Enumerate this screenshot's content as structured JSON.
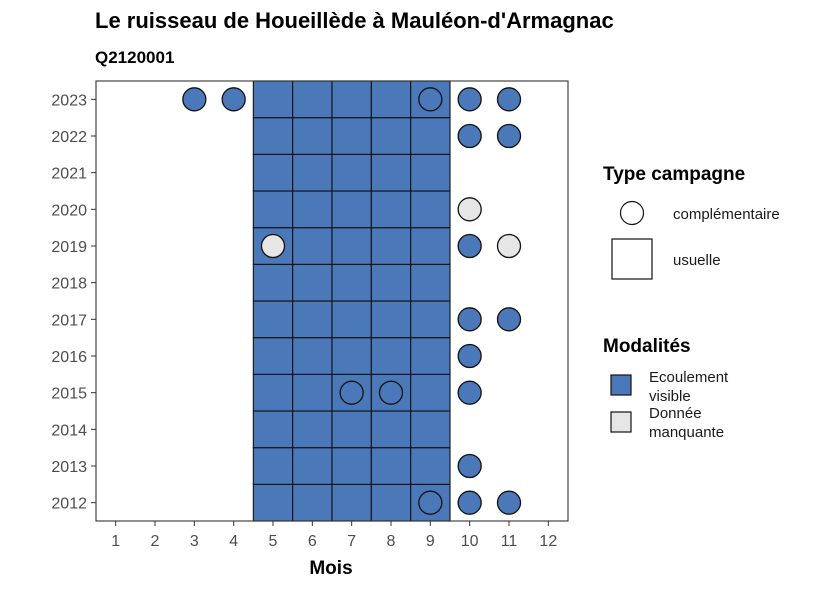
{
  "chart_data": {
    "type": "heatmap",
    "title": "Le ruisseau de Houeillède à Mauléon-d'Armagnac",
    "subtitle": "Q2120001",
    "xlabel": "Mois",
    "ylabel": "",
    "x_ticks": [
      "1",
      "2",
      "3",
      "4",
      "5",
      "6",
      "7",
      "8",
      "9",
      "10",
      "11",
      "12"
    ],
    "y_ticks": [
      "2012",
      "2013",
      "2014",
      "2015",
      "2016",
      "2017",
      "2018",
      "2019",
      "2020",
      "2021",
      "2022",
      "2023"
    ],
    "xlim": [
      0.5,
      12.5
    ],
    "ylim": [
      2011.5,
      2023.5
    ],
    "grid": false,
    "colors": {
      "Ecoulement visible": "#4a78b8",
      "Donnée manquante": "#e6e6e6",
      "frame": "#333333",
      "outline": "#111111"
    },
    "legend": {
      "placement": "right",
      "type_title": "Type campagne",
      "type_items": [
        {
          "label": "complémentaire",
          "shape": "circle"
        },
        {
          "label": "usuelle",
          "shape": "square"
        }
      ],
      "modalite_title": "Modalités",
      "modalite_items": [
        {
          "label_lines": [
            "Ecoulement",
            "visible"
          ],
          "value": "Ecoulement visible"
        },
        {
          "label_lines": [
            "Donnée",
            "manquante"
          ],
          "value": "Donnée manquante"
        }
      ]
    },
    "points": [
      {
        "x": 5,
        "y": 2012,
        "type": "usuelle",
        "value": "Ecoulement visible"
      },
      {
        "x": 6,
        "y": 2012,
        "type": "usuelle",
        "value": "Ecoulement visible"
      },
      {
        "x": 7,
        "y": 2012,
        "type": "usuelle",
        "value": "Ecoulement visible"
      },
      {
        "x": 8,
        "y": 2012,
        "type": "usuelle",
        "value": "Ecoulement visible"
      },
      {
        "x": 9,
        "y": 2012,
        "type": "usuelle",
        "value": "Ecoulement visible"
      },
      {
        "x": 9,
        "y": 2012,
        "type": "complémentaire",
        "value": "Ecoulement visible"
      },
      {
        "x": 10,
        "y": 2012,
        "type": "complémentaire",
        "value": "Ecoulement visible"
      },
      {
        "x": 11,
        "y": 2012,
        "type": "complémentaire",
        "value": "Ecoulement visible"
      },
      {
        "x": 5,
        "y": 2013,
        "type": "usuelle",
        "value": "Ecoulement visible"
      },
      {
        "x": 6,
        "y": 2013,
        "type": "usuelle",
        "value": "Ecoulement visible"
      },
      {
        "x": 7,
        "y": 2013,
        "type": "usuelle",
        "value": "Ecoulement visible"
      },
      {
        "x": 8,
        "y": 2013,
        "type": "usuelle",
        "value": "Ecoulement visible"
      },
      {
        "x": 9,
        "y": 2013,
        "type": "usuelle",
        "value": "Ecoulement visible"
      },
      {
        "x": 10,
        "y": 2013,
        "type": "complémentaire",
        "value": "Ecoulement visible"
      },
      {
        "x": 5,
        "y": 2014,
        "type": "usuelle",
        "value": "Ecoulement visible"
      },
      {
        "x": 6,
        "y": 2014,
        "type": "usuelle",
        "value": "Ecoulement visible"
      },
      {
        "x": 7,
        "y": 2014,
        "type": "usuelle",
        "value": "Ecoulement visible"
      },
      {
        "x": 8,
        "y": 2014,
        "type": "usuelle",
        "value": "Ecoulement visible"
      },
      {
        "x": 9,
        "y": 2014,
        "type": "usuelle",
        "value": "Ecoulement visible"
      },
      {
        "x": 5,
        "y": 2015,
        "type": "usuelle",
        "value": "Ecoulement visible"
      },
      {
        "x": 6,
        "y": 2015,
        "type": "usuelle",
        "value": "Ecoulement visible"
      },
      {
        "x": 7,
        "y": 2015,
        "type": "usuelle",
        "value": "Ecoulement visible"
      },
      {
        "x": 8,
        "y": 2015,
        "type": "usuelle",
        "value": "Ecoulement visible"
      },
      {
        "x": 9,
        "y": 2015,
        "type": "usuelle",
        "value": "Ecoulement visible"
      },
      {
        "x": 7,
        "y": 2015,
        "type": "complémentaire",
        "value": "Ecoulement visible"
      },
      {
        "x": 8,
        "y": 2015,
        "type": "complémentaire",
        "value": "Ecoulement visible"
      },
      {
        "x": 10,
        "y": 2015,
        "type": "complémentaire",
        "value": "Ecoulement visible"
      },
      {
        "x": 5,
        "y": 2016,
        "type": "usuelle",
        "value": "Ecoulement visible"
      },
      {
        "x": 6,
        "y": 2016,
        "type": "usuelle",
        "value": "Ecoulement visible"
      },
      {
        "x": 7,
        "y": 2016,
        "type": "usuelle",
        "value": "Ecoulement visible"
      },
      {
        "x": 8,
        "y": 2016,
        "type": "usuelle",
        "value": "Ecoulement visible"
      },
      {
        "x": 9,
        "y": 2016,
        "type": "usuelle",
        "value": "Ecoulement visible"
      },
      {
        "x": 10,
        "y": 2016,
        "type": "complémentaire",
        "value": "Ecoulement visible"
      },
      {
        "x": 5,
        "y": 2017,
        "type": "usuelle",
        "value": "Ecoulement visible"
      },
      {
        "x": 6,
        "y": 2017,
        "type": "usuelle",
        "value": "Ecoulement visible"
      },
      {
        "x": 7,
        "y": 2017,
        "type": "usuelle",
        "value": "Ecoulement visible"
      },
      {
        "x": 8,
        "y": 2017,
        "type": "usuelle",
        "value": "Ecoulement visible"
      },
      {
        "x": 9,
        "y": 2017,
        "type": "usuelle",
        "value": "Ecoulement visible"
      },
      {
        "x": 10,
        "y": 2017,
        "type": "complémentaire",
        "value": "Ecoulement visible"
      },
      {
        "x": 11,
        "y": 2017,
        "type": "complémentaire",
        "value": "Ecoulement visible"
      },
      {
        "x": 5,
        "y": 2018,
        "type": "usuelle",
        "value": "Ecoulement visible"
      },
      {
        "x": 6,
        "y": 2018,
        "type": "usuelle",
        "value": "Ecoulement visible"
      },
      {
        "x": 7,
        "y": 2018,
        "type": "usuelle",
        "value": "Ecoulement visible"
      },
      {
        "x": 8,
        "y": 2018,
        "type": "usuelle",
        "value": "Ecoulement visible"
      },
      {
        "x": 9,
        "y": 2018,
        "type": "usuelle",
        "value": "Ecoulement visible"
      },
      {
        "x": 5,
        "y": 2019,
        "type": "usuelle",
        "value": "Ecoulement visible"
      },
      {
        "x": 6,
        "y": 2019,
        "type": "usuelle",
        "value": "Ecoulement visible"
      },
      {
        "x": 7,
        "y": 2019,
        "type": "usuelle",
        "value": "Ecoulement visible"
      },
      {
        "x": 8,
        "y": 2019,
        "type": "usuelle",
        "value": "Ecoulement visible"
      },
      {
        "x": 9,
        "y": 2019,
        "type": "usuelle",
        "value": "Ecoulement visible"
      },
      {
        "x": 5,
        "y": 2019,
        "type": "complémentaire",
        "value": "Donnée manquante"
      },
      {
        "x": 10,
        "y": 2019,
        "type": "complémentaire",
        "value": "Ecoulement visible"
      },
      {
        "x": 11,
        "y": 2019,
        "type": "complémentaire",
        "value": "Donnée manquante"
      },
      {
        "x": 5,
        "y": 2020,
        "type": "usuelle",
        "value": "Ecoulement visible"
      },
      {
        "x": 6,
        "y": 2020,
        "type": "usuelle",
        "value": "Ecoulement visible"
      },
      {
        "x": 7,
        "y": 2020,
        "type": "usuelle",
        "value": "Ecoulement visible"
      },
      {
        "x": 8,
        "y": 2020,
        "type": "usuelle",
        "value": "Ecoulement visible"
      },
      {
        "x": 9,
        "y": 2020,
        "type": "usuelle",
        "value": "Ecoulement visible"
      },
      {
        "x": 10,
        "y": 2020,
        "type": "complémentaire",
        "value": "Donnée manquante"
      },
      {
        "x": 5,
        "y": 2021,
        "type": "usuelle",
        "value": "Ecoulement visible"
      },
      {
        "x": 6,
        "y": 2021,
        "type": "usuelle",
        "value": "Ecoulement visible"
      },
      {
        "x": 7,
        "y": 2021,
        "type": "usuelle",
        "value": "Ecoulement visible"
      },
      {
        "x": 8,
        "y": 2021,
        "type": "usuelle",
        "value": "Ecoulement visible"
      },
      {
        "x": 9,
        "y": 2021,
        "type": "usuelle",
        "value": "Ecoulement visible"
      },
      {
        "x": 5,
        "y": 2022,
        "type": "usuelle",
        "value": "Ecoulement visible"
      },
      {
        "x": 6,
        "y": 2022,
        "type": "usuelle",
        "value": "Ecoulement visible"
      },
      {
        "x": 7,
        "y": 2022,
        "type": "usuelle",
        "value": "Ecoulement visible"
      },
      {
        "x": 8,
        "y": 2022,
        "type": "usuelle",
        "value": "Ecoulement visible"
      },
      {
        "x": 9,
        "y": 2022,
        "type": "usuelle",
        "value": "Ecoulement visible"
      },
      {
        "x": 10,
        "y": 2022,
        "type": "complémentaire",
        "value": "Ecoulement visible"
      },
      {
        "x": 11,
        "y": 2022,
        "type": "complémentaire",
        "value": "Ecoulement visible"
      },
      {
        "x": 5,
        "y": 2023,
        "type": "usuelle",
        "value": "Ecoulement visible"
      },
      {
        "x": 6,
        "y": 2023,
        "type": "usuelle",
        "value": "Ecoulement visible"
      },
      {
        "x": 7,
        "y": 2023,
        "type": "usuelle",
        "value": "Ecoulement visible"
      },
      {
        "x": 8,
        "y": 2023,
        "type": "usuelle",
        "value": "Ecoulement visible"
      },
      {
        "x": 9,
        "y": 2023,
        "type": "usuelle",
        "value": "Ecoulement visible"
      },
      {
        "x": 3,
        "y": 2023,
        "type": "complémentaire",
        "value": "Ecoulement visible"
      },
      {
        "x": 4,
        "y": 2023,
        "type": "complémentaire",
        "value": "Ecoulement visible"
      },
      {
        "x": 9,
        "y": 2023,
        "type": "complémentaire",
        "value": "Ecoulement visible"
      },
      {
        "x": 10,
        "y": 2023,
        "type": "complémentaire",
        "value": "Ecoulement visible"
      },
      {
        "x": 11,
        "y": 2023,
        "type": "complémentaire",
        "value": "Ecoulement visible"
      }
    ]
  }
}
